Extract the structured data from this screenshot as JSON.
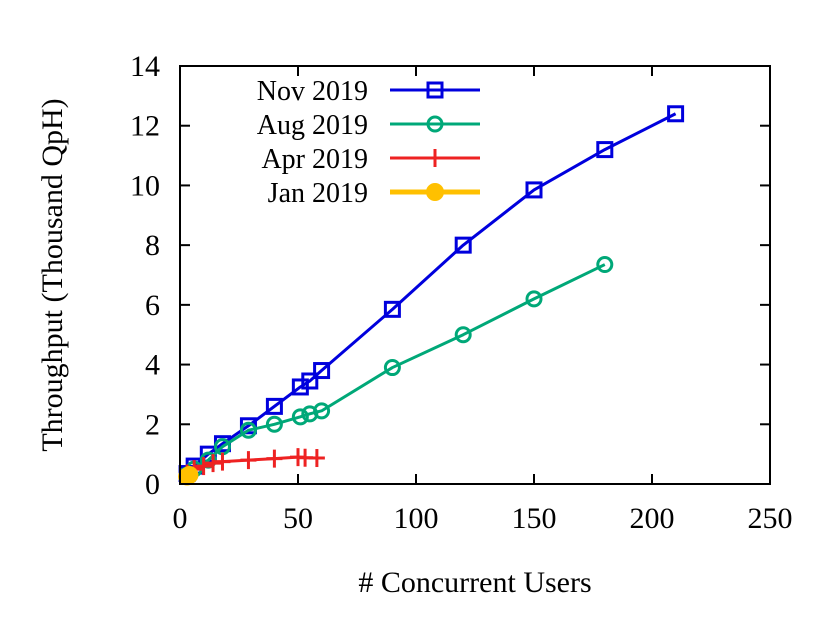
{
  "chart_data": {
    "type": "line",
    "title": "",
    "xlabel": "# Concurrent Users",
    "ylabel": "Throughput (Thousand QpH)",
    "xlim": [
      0,
      250
    ],
    "ylim": [
      0,
      14
    ],
    "xticks": [
      0,
      50,
      100,
      150,
      200,
      250
    ],
    "yticks": [
      0,
      2,
      4,
      6,
      8,
      10,
      12,
      14
    ],
    "grid": false,
    "legend_position": "top-left",
    "series": [
      {
        "name": "Nov 2019",
        "color": "#0000dd",
        "marker": "square",
        "x": [
          3,
          6,
          12,
          18,
          29,
          40,
          51,
          55,
          60,
          90,
          120,
          150,
          180,
          210
        ],
        "y": [
          0.35,
          0.6,
          1.0,
          1.35,
          1.95,
          2.6,
          3.25,
          3.45,
          3.8,
          5.85,
          8.0,
          9.85,
          11.2,
          12.4
        ]
      },
      {
        "name": "Aug 2019",
        "color": "#00a878",
        "marker": "circle",
        "x": [
          3,
          6,
          12,
          18,
          29,
          40,
          51,
          55,
          60,
          90,
          120,
          150,
          180
        ],
        "y": [
          0.3,
          0.5,
          0.8,
          1.25,
          1.8,
          2.0,
          2.25,
          2.35,
          2.45,
          3.9,
          5.0,
          6.2,
          7.35
        ]
      },
      {
        "name": "Apr 2019",
        "color": "#ee2222",
        "marker": "plus",
        "x": [
          3,
          6,
          10,
          14,
          18,
          29,
          40,
          50,
          53,
          58
        ],
        "y": [
          0.35,
          0.5,
          0.6,
          0.7,
          0.75,
          0.8,
          0.85,
          0.9,
          0.88,
          0.87
        ]
      },
      {
        "name": "Jan 2019",
        "color": "#ffc000",
        "marker": "filled-circle",
        "x": [
          3,
          4
        ],
        "y": [
          0.25,
          0.3
        ]
      }
    ]
  }
}
